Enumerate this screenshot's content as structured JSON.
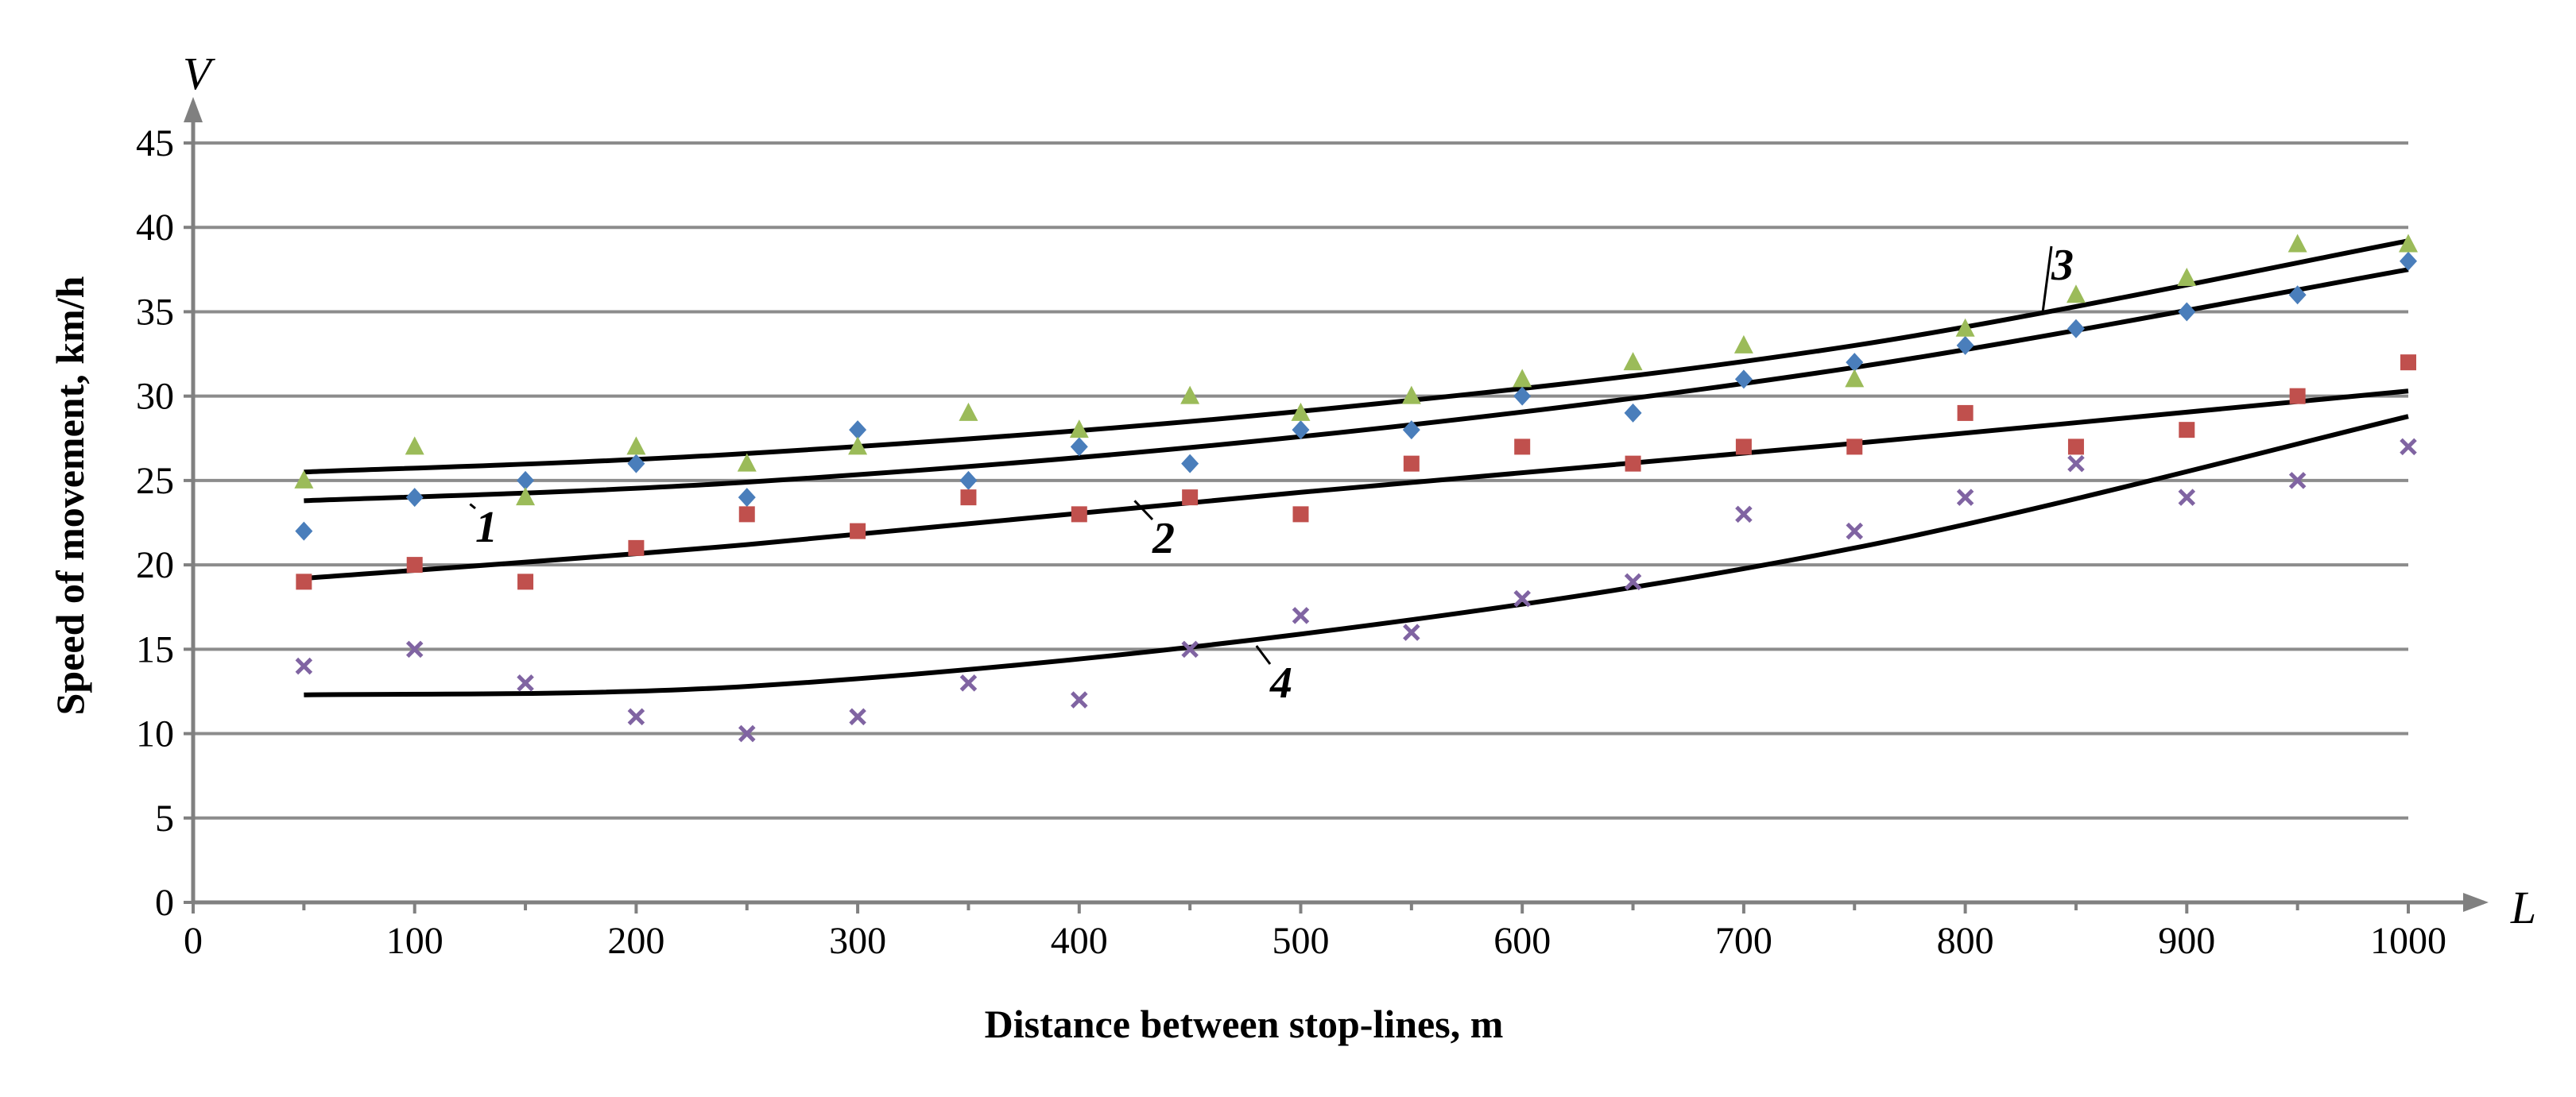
{
  "chart_data": {
    "type": "scatter",
    "xlabel": "Distance between stop-lines, m",
    "ylabel": "Speed of movement, km/h",
    "x_axis_letter": "L",
    "y_axis_letter": "V",
    "xlim": [
      0,
      1000
    ],
    "ylim": [
      0,
      45
    ],
    "x_ticks": [
      "0",
      "100",
      "200",
      "300",
      "400",
      "500",
      "600",
      "700",
      "800",
      "900",
      "1000"
    ],
    "y_ticks": [
      "0",
      "5",
      "10",
      "15",
      "20",
      "25",
      "30",
      "35",
      "40",
      "45"
    ],
    "grid": "horizontal",
    "x": [
      50,
      100,
      150,
      200,
      250,
      300,
      350,
      400,
      450,
      500,
      550,
      600,
      650,
      700,
      750,
      800,
      850,
      900,
      950,
      1000
    ],
    "series": [
      {
        "marker": "diamond",
        "color": "#4a7ebb",
        "values": [
          22,
          24,
          25,
          26,
          24,
          28,
          25,
          27,
          26,
          28,
          28,
          30,
          29,
          31,
          32,
          33,
          34,
          35,
          36,
          38
        ]
      },
      {
        "marker": "square",
        "color": "#c0504d",
        "values": [
          19,
          20,
          19,
          21,
          23,
          22,
          24,
          23,
          24,
          23,
          26,
          27,
          26,
          27,
          27,
          29,
          27,
          28,
          30,
          32
        ]
      },
      {
        "marker": "triangle",
        "color": "#9bbb59",
        "values": [
          25,
          27,
          24,
          27,
          26,
          27,
          29,
          28,
          30,
          29,
          30,
          31,
          32,
          33,
          31,
          34,
          36,
          37,
          39,
          39
        ]
      },
      {
        "marker": "x",
        "color": "#8064a2",
        "values": [
          14,
          15,
          13,
          11,
          10,
          11,
          13,
          12,
          15,
          17,
          16,
          18,
          19,
          23,
          22,
          24,
          26,
          24,
          25,
          27
        ]
      }
    ],
    "trendlines": [
      {
        "label": "1",
        "x": [
          50,
          250,
          500,
          750,
          1000
        ],
        "y": [
          23.8,
          24.9,
          27.6,
          31.7,
          37.5
        ]
      },
      {
        "label": "2",
        "x": [
          50,
          250,
          500,
          750,
          1000
        ],
        "y": [
          19.2,
          21.2,
          24.3,
          27.2,
          30.3
        ]
      },
      {
        "label": "3",
        "x": [
          50,
          250,
          500,
          750,
          1000
        ],
        "y": [
          25.5,
          26.6,
          29.1,
          33.0,
          39.2
        ]
      },
      {
        "label": "4",
        "x": [
          50,
          250,
          500,
          750,
          1000
        ],
        "y": [
          12.3,
          12.8,
          15.9,
          21.0,
          28.8
        ]
      }
    ]
  }
}
